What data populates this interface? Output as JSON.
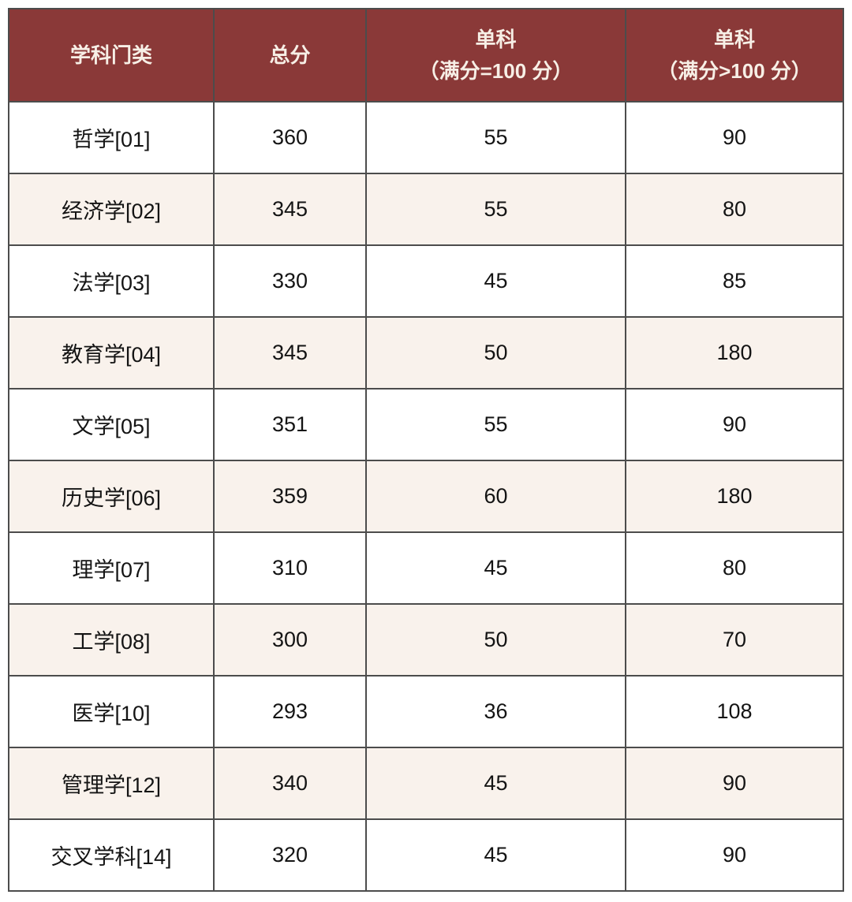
{
  "colors": {
    "header_bg": "#8a3938",
    "header_text": "#f7efe6",
    "row_alt_bg": "#f9f2ec",
    "row_bg": "#ffffff",
    "body_text": "#141414",
    "border": "#4c4c4c"
  },
  "table": {
    "columns": [
      {
        "title": "学科门类",
        "subtitle": ""
      },
      {
        "title": "总分",
        "subtitle": ""
      },
      {
        "title": "单科",
        "subtitle": "（满分=100 分）"
      },
      {
        "title": "单科",
        "subtitle": "（满分>100 分）"
      }
    ],
    "rows": [
      {
        "category": "哲学[01]",
        "total": "360",
        "single_max100": "55",
        "single_over100": "90"
      },
      {
        "category": "经济学[02]",
        "total": "345",
        "single_max100": "55",
        "single_over100": "80"
      },
      {
        "category": "法学[03]",
        "total": "330",
        "single_max100": "45",
        "single_over100": "85"
      },
      {
        "category": "教育学[04]",
        "total": "345",
        "single_max100": "50",
        "single_over100": "180"
      },
      {
        "category": "文学[05]",
        "total": "351",
        "single_max100": "55",
        "single_over100": "90"
      },
      {
        "category": "历史学[06]",
        "total": "359",
        "single_max100": "60",
        "single_over100": "180"
      },
      {
        "category": "理学[07]",
        "total": "310",
        "single_max100": "45",
        "single_over100": "80"
      },
      {
        "category": "工学[08]",
        "total": "300",
        "single_max100": "50",
        "single_over100": "70"
      },
      {
        "category": "医学[10]",
        "total": "293",
        "single_max100": "36",
        "single_over100": "108"
      },
      {
        "category": "管理学[12]",
        "total": "340",
        "single_max100": "45",
        "single_over100": "90"
      },
      {
        "category": "交叉学科[14]",
        "total": "320",
        "single_max100": "45",
        "single_over100": "90"
      }
    ]
  },
  "chart_data": {
    "type": "table",
    "title": "",
    "columns": [
      "学科门类",
      "总分",
      "单科（满分=100 分）",
      "单科（满分>100 分）"
    ],
    "rows": [
      [
        "哲学[01]",
        360,
        55,
        90
      ],
      [
        "经济学[02]",
        345,
        55,
        80
      ],
      [
        "法学[03]",
        330,
        45,
        85
      ],
      [
        "教育学[04]",
        345,
        50,
        180
      ],
      [
        "文学[05]",
        351,
        55,
        90
      ],
      [
        "历史学[06]",
        359,
        60,
        180
      ],
      [
        "理学[07]",
        310,
        45,
        80
      ],
      [
        "工学[08]",
        300,
        50,
        70
      ],
      [
        "医学[10]",
        293,
        36,
        108
      ],
      [
        "管理学[12]",
        340,
        45,
        90
      ],
      [
        "交叉学科[14]",
        320,
        45,
        90
      ]
    ],
    "layout": {
      "header_style": "maroon",
      "zebra_striping": true,
      "grid": true
    }
  }
}
